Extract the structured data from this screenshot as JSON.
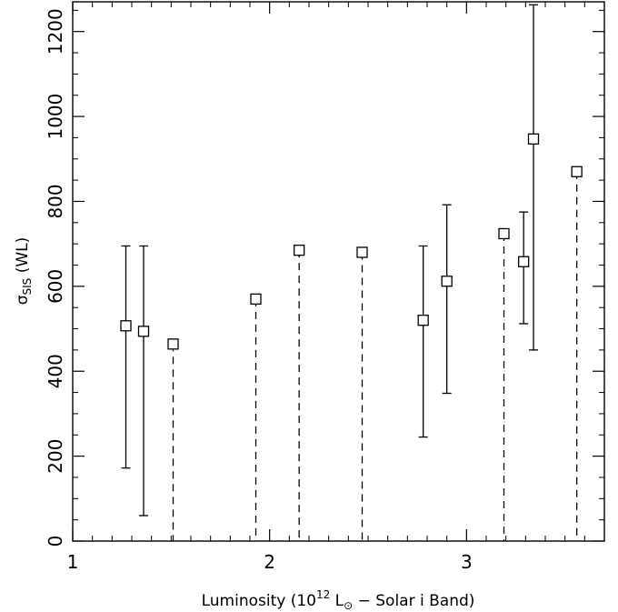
{
  "chart_data": {
    "type": "scatter",
    "title": "",
    "xlim": [
      1.0,
      3.7
    ],
    "ylim": [
      0,
      1270
    ],
    "x_ticks": [
      1,
      2,
      3
    ],
    "x_tick_labels": [
      "1",
      "2",
      "3"
    ],
    "y_ticks": [
      0,
      200,
      400,
      600,
      800,
      1000,
      1200
    ],
    "y_tick_labels": [
      "0",
      "200",
      "400",
      "600",
      "800",
      "1000",
      "1200"
    ],
    "xlabel": {
      "prefix": "Luminosity (10",
      "exp": "12",
      "mid": " L",
      "sub": "⊙",
      "suffix": " − Solar i Band)"
    },
    "ylabel": {
      "main": "σ",
      "sub": "SIS",
      "suffix": " (WL)"
    },
    "grid": false,
    "legend": "none",
    "points": [
      {
        "x": 1.27,
        "y": 507,
        "low": 172,
        "high": 695,
        "kind": "errorbar"
      },
      {
        "x": 1.36,
        "y": 494,
        "low": 60,
        "high": 695,
        "kind": "errorbar"
      },
      {
        "x": 1.51,
        "y": 464,
        "low": 0,
        "high": 464,
        "kind": "upper-limit"
      },
      {
        "x": 1.93,
        "y": 570,
        "low": 0,
        "high": 570,
        "kind": "upper-limit"
      },
      {
        "x": 2.15,
        "y": 685,
        "low": 0,
        "high": 685,
        "kind": "upper-limit"
      },
      {
        "x": 2.47,
        "y": 680,
        "low": 0,
        "high": 680,
        "kind": "upper-limit"
      },
      {
        "x": 2.78,
        "y": 520,
        "low": 245,
        "high": 695,
        "kind": "errorbar"
      },
      {
        "x": 2.9,
        "y": 612,
        "low": 348,
        "high": 792,
        "kind": "errorbar"
      },
      {
        "x": 3.19,
        "y": 724,
        "low": 0,
        "high": 724,
        "kind": "upper-limit"
      },
      {
        "x": 3.29,
        "y": 658,
        "low": 512,
        "high": 775,
        "kind": "errorbar"
      },
      {
        "x": 3.34,
        "y": 947,
        "low": 450,
        "high": 1263,
        "kind": "errorbar"
      },
      {
        "x": 3.56,
        "y": 870,
        "low": 0,
        "high": 870,
        "kind": "upper-limit"
      }
    ]
  }
}
